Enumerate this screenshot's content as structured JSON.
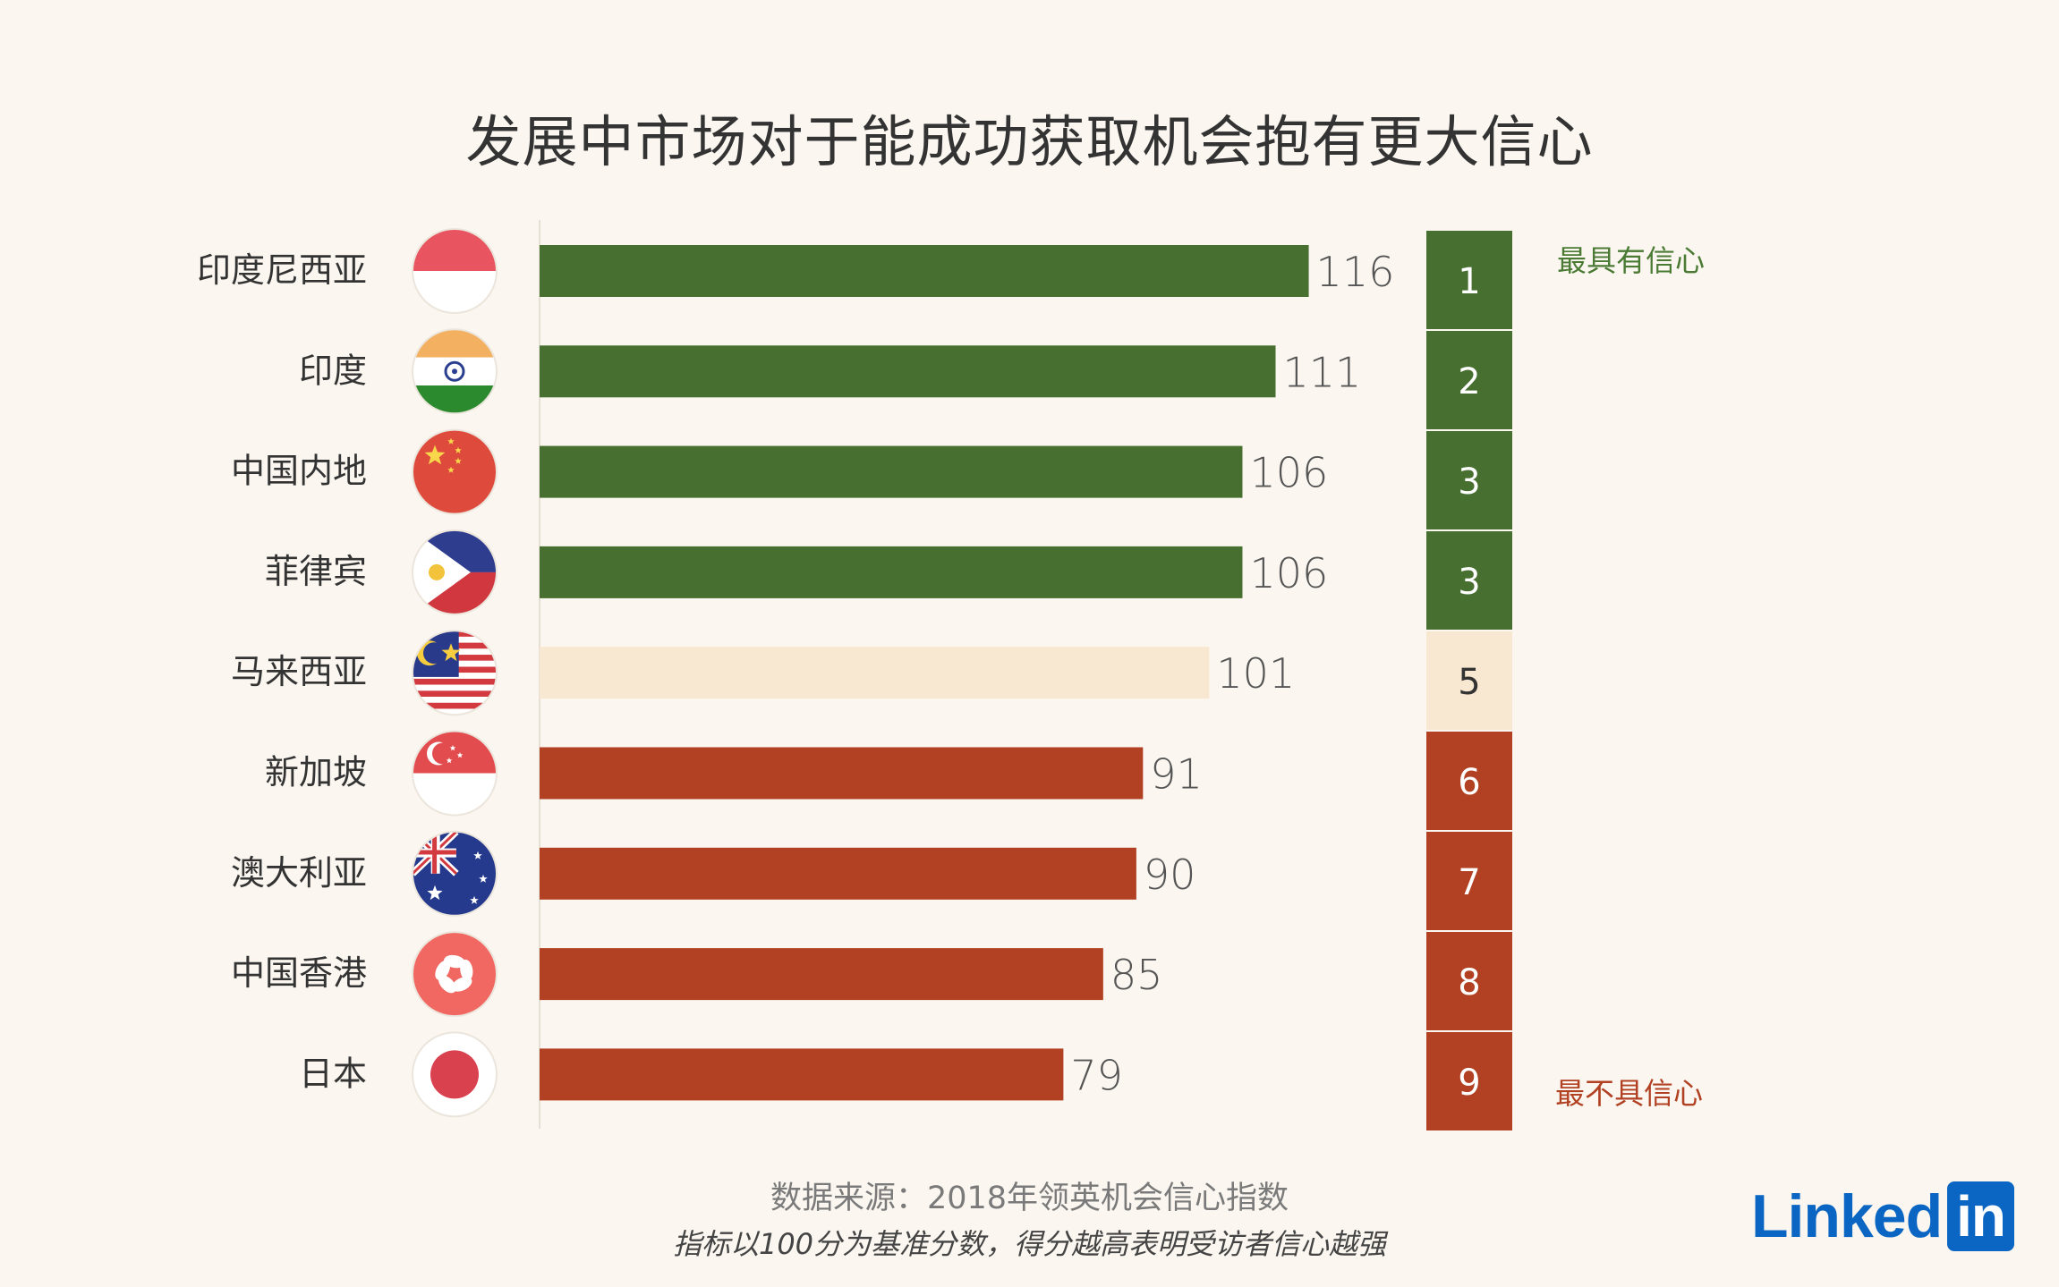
{
  "title": "发展中市场对于能成功获取机会抱有更大信心",
  "source": "数据来源：2018年领英机会信心指数",
  "note": "指标以100分为基准分数，得分越高表明受访者信心越强",
  "logo": {
    "text": "Linked",
    "box": "in"
  },
  "colors": {
    "high": "#466f30",
    "mid": "#f9e8d1",
    "low": "#b14122",
    "high_text": "#4a7a33",
    "low_text": "#b14122",
    "label": "#333333",
    "value": "#555555"
  },
  "legend": {
    "top": "最具有信心",
    "bottom": "最不具信心"
  },
  "chart_data": {
    "type": "bar",
    "orientation": "horizontal",
    "categories": [
      "印度尼西亚",
      "印度",
      "中国内地",
      "菲律宾",
      "马来西亚",
      "新加坡",
      "澳大利亚",
      "中国香港",
      "日本"
    ],
    "values": [
      116,
      111,
      106,
      106,
      101,
      91,
      90,
      85,
      79
    ],
    "ranks": [
      "1",
      "2",
      "3",
      "3",
      "5",
      "6",
      "7",
      "8",
      "9"
    ],
    "flags": [
      "indonesia-flag-icon",
      "india-flag-icon",
      "china-flag-icon",
      "philippines-flag-icon",
      "malaysia-flag-icon",
      "singapore-flag-icon",
      "australia-flag-icon",
      "hong-kong-flag-icon",
      "japan-flag-icon"
    ],
    "xlim": [
      0,
      120
    ],
    "grid": false
  }
}
